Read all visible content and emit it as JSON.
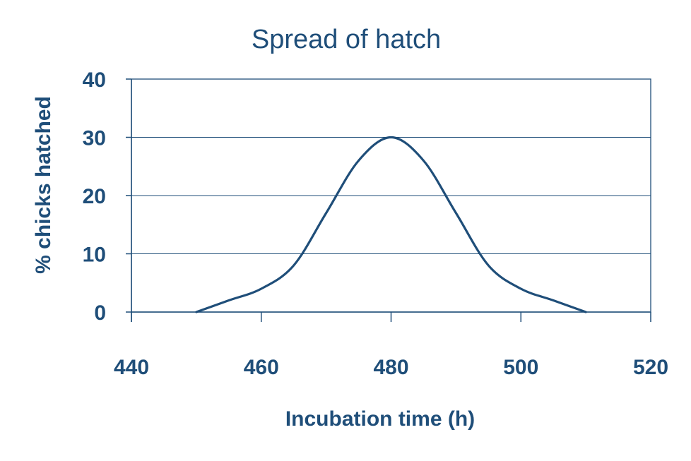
{
  "chart_data": {
    "type": "line",
    "title": "Spread of hatch",
    "xlabel": "Incubation time (h)",
    "ylabel": "% chicks hatched",
    "xlim": [
      440,
      520
    ],
    "ylim": [
      0,
      40
    ],
    "x_ticks": [
      440,
      460,
      480,
      500,
      520
    ],
    "y_ticks": [
      0,
      10,
      20,
      30,
      40
    ],
    "grid": "horizontal",
    "smooth": true,
    "colors": {
      "line": "#1f4e79",
      "axis": "#1f4e79",
      "grid": "#1f4e79",
      "text": "#1f4e79"
    },
    "series": [
      {
        "x": [
          450,
          455,
          460,
          465,
          470,
          475,
          480,
          485,
          490,
          495,
          500,
          505,
          510
        ],
        "y": [
          0,
          2,
          4,
          8,
          17,
          26,
          30,
          26,
          17,
          8,
          4,
          2,
          0
        ]
      }
    ]
  }
}
